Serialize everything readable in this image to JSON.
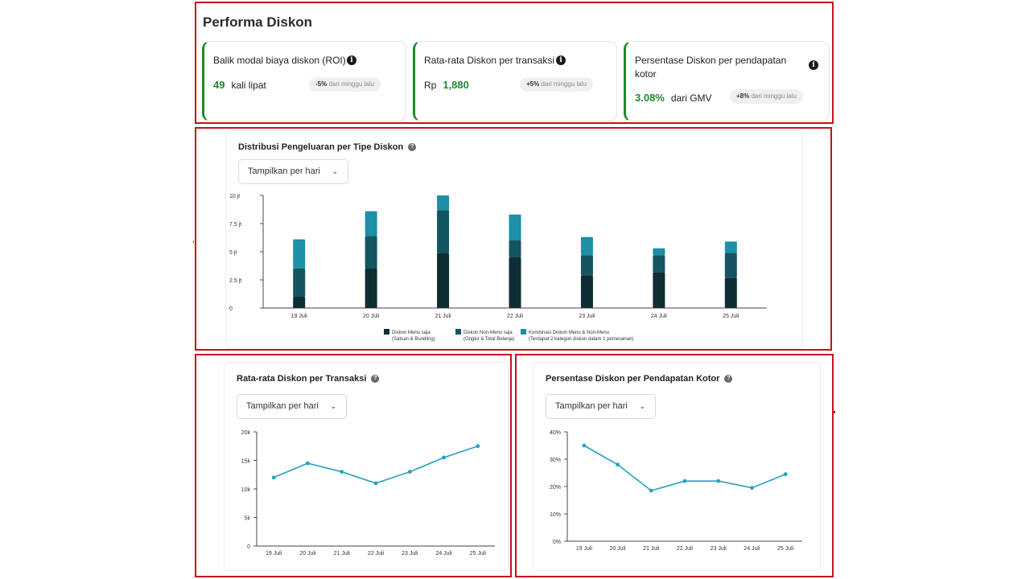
{
  "page": {
    "title": "Performa Diskon"
  },
  "kpis": [
    {
      "title": "Balik modal biaya diskon (ROI)",
      "prefix": "",
      "value": "49",
      "unit": "kali lipat",
      "change": "-5%",
      "change_suffix": "dari minggu lalu"
    },
    {
      "title": "Rata-rata Diskon per transaksi",
      "prefix": "Rp",
      "value": "1,880",
      "unit": "",
      "change": "+5%",
      "change_suffix": "dari minggu lalu"
    },
    {
      "title": "Persentase Diskon per pendapatan kotor",
      "prefix": "",
      "value": "3.08%",
      "unit": "dari GMV",
      "change": "+8%",
      "change_suffix": "dari minggu lalu"
    }
  ],
  "colors": {
    "accent_green": "#1e8a2e",
    "frame_red": "#c4121b",
    "bar_dark": "#0f2e33",
    "bar_mid": "#155562",
    "bar_light": "#1e8fa6",
    "line": "#27a0c1"
  },
  "icons": {
    "info": "info-icon",
    "help": "question-icon",
    "dropdown": "chevron-down-icon"
  },
  "info_glyph": "i",
  "help_glyph": "?",
  "dropdown_chevron": "⌄",
  "chart_data": [
    {
      "type": "bar",
      "stacked": true,
      "title": "Distribusi Pengeluaran per Tipe Diskon",
      "dropdown": "Tampilkan per hari",
      "categories": [
        "19 Juli",
        "20 Juli",
        "21 Juli",
        "22 Juli",
        "23 Juli",
        "24 Juli",
        "25 Juli"
      ],
      "yticks": [
        "0",
        "2.5 jt",
        "5 jt",
        "7.5 jt",
        "10 jt"
      ],
      "ylim": [
        0,
        10
      ],
      "series": [
        {
          "name": "Diskon Menu saja",
          "note": "(Satuan & Bundling)",
          "color": "#0f2e33",
          "values": [
            1.0,
            3.5,
            4.9,
            4.5,
            2.9,
            3.2,
            2.7
          ]
        },
        {
          "name": "Diskon Non-Menu saja",
          "note": "(Ongkir & Total Belanja)",
          "color": "#155562",
          "values": [
            2.5,
            2.9,
            3.8,
            1.5,
            1.8,
            1.5,
            2.2
          ]
        },
        {
          "name": "Kombinasi Diskon Menu & Non-Menu",
          "note": "(Terdapat 2 kategori diskon dalam 1 pemesanan)",
          "color": "#1e8fa6",
          "values": [
            2.6,
            2.2,
            1.3,
            2.3,
            1.6,
            0.6,
            1.0
          ]
        }
      ]
    },
    {
      "type": "line",
      "title": "Rata-rata Diskon per Transaksi",
      "dropdown": "Tampilkan per hari",
      "categories": [
        "19 Juli",
        "20 Juli",
        "21 Juli",
        "22 Juli",
        "23 Juli",
        "24 Juli",
        "25 Juli"
      ],
      "yticks": [
        "0",
        "5k",
        "10k",
        "15k",
        "20k"
      ],
      "ylim": [
        0,
        20
      ],
      "values": [
        12.0,
        14.5,
        13.0,
        11.0,
        13.0,
        15.5,
        17.5
      ]
    },
    {
      "type": "line",
      "title": "Persentase Diskon per Pendapatan Kotor",
      "dropdown": "Tampilkan per hari",
      "categories": [
        "19 Juli",
        "20 Juli",
        "21 Juli",
        "22 Juli",
        "23 Juli",
        "24 Juli",
        "25 Juli"
      ],
      "yticks": [
        "0%",
        "10%",
        "20%",
        "30%",
        "40%"
      ],
      "ylim": [
        0,
        40
      ],
      "values": [
        35,
        28,
        18.5,
        22,
        22,
        19.5,
        24.5
      ]
    }
  ]
}
